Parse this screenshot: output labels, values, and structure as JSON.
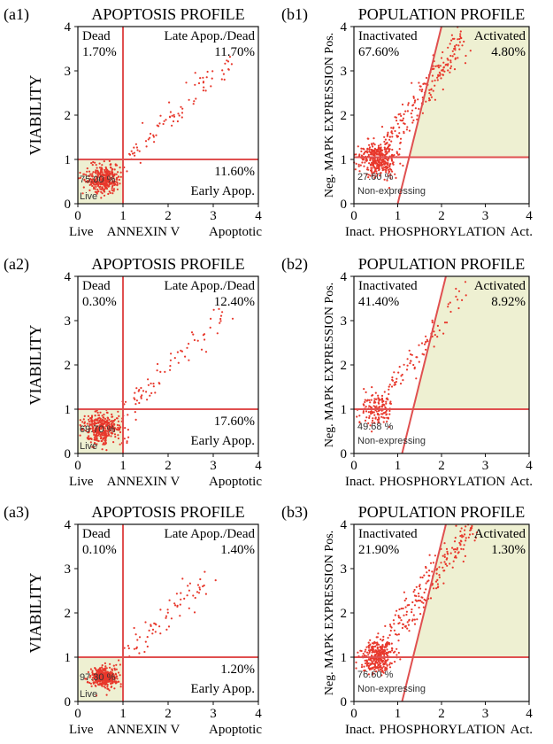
{
  "chart_data": [
    {
      "panel_label": "(a1)",
      "type": "scatter",
      "title": "APOPTOSIS PROFILE",
      "ylabel": "VIABILITY",
      "xlabel_left": "Live",
      "xlabel_mid": "ANNEXIN V",
      "xlabel_right": "Apoptotic",
      "xlim": [
        0,
        4
      ],
      "ylim": [
        0,
        4
      ],
      "x_ticks": [
        "0",
        "1",
        "2",
        "3",
        "4"
      ],
      "y_ticks": [
        "0",
        "1",
        "2",
        "3",
        "4"
      ],
      "gate": {
        "kind": "cross",
        "x": 1.0,
        "y": 1.0
      },
      "quadrants": {
        "top_left": {
          "name": "Dead",
          "value": "1.70%"
        },
        "top_right": {
          "name": "Late Apop./Dead",
          "value": "11.70%"
        },
        "bottom_left": {
          "name": "Live",
          "value": "75.00 %"
        },
        "bottom_right": {
          "name": "Early Apop.",
          "value": "11.60%"
        }
      },
      "highlight": "bottom_left",
      "colors": {
        "points": "#e8382c",
        "gate": "#e05050",
        "fill": "#eef0d2"
      },
      "cloud": {
        "n": 420,
        "spread": 0.55,
        "tail": 2.6
      }
    },
    {
      "panel_label": "(b1)",
      "type": "scatter",
      "title": "POPULATION PROFILE",
      "ylabel": "Neg. MAPK EXPRESSION Pos.",
      "xlabel_left": "Inact.",
      "xlabel_mid": "PHOSPHORYLATION",
      "xlabel_right": "Act.",
      "xlim": [
        0,
        4
      ],
      "ylim": [
        0,
        4
      ],
      "x_ticks": [
        "0",
        "1",
        "2",
        "3",
        "4"
      ],
      "y_ticks": [
        "0",
        "1",
        "2",
        "3",
        "4"
      ],
      "gate": {
        "kind": "angled",
        "y": 1.05,
        "line": [
          [
            1.0,
            0.0
          ],
          [
            2.0,
            4.0
          ]
        ]
      },
      "quadrants": {
        "top_left": {
          "name": "Inactivated",
          "value": "67.60%"
        },
        "top_right": {
          "name": "Activated",
          "value": "4.80%"
        },
        "bottom_left": {
          "name": "Non-expressing",
          "value": "27.60 %"
        }
      },
      "highlight": "top_right",
      "colors": {
        "points": "#e8382c",
        "gate": "#e05050",
        "fill": "#eef0d2"
      },
      "cloud": {
        "n": 560,
        "spread": 0.55,
        "tail": 2.8
      }
    },
    {
      "panel_label": "(a2)",
      "type": "scatter",
      "title": "APOPTOSIS PROFILE",
      "ylabel": "VIABILITY",
      "xlabel_left": "Live",
      "xlabel_mid": "ANNEXIN V",
      "xlabel_right": "Apoptotic",
      "xlim": [
        0,
        4
      ],
      "ylim": [
        0,
        4
      ],
      "x_ticks": [
        "0",
        "1",
        "2",
        "3",
        "4"
      ],
      "y_ticks": [
        "0",
        "1",
        "2",
        "3",
        "4"
      ],
      "gate": {
        "kind": "cross",
        "x": 1.0,
        "y": 1.0
      },
      "quadrants": {
        "top_left": {
          "name": "Dead",
          "value": "0.30%"
        },
        "top_right": {
          "name": "Late Apop./Dead",
          "value": "12.40%"
        },
        "bottom_left": {
          "name": "Live",
          "value": "69.70 %"
        },
        "bottom_right": {
          "name": "Early Apop.",
          "value": "17.60%"
        }
      },
      "highlight": "bottom_left",
      "colors": {
        "points": "#e8382c",
        "gate": "#e05050",
        "fill": "#eef0d2"
      },
      "cloud": {
        "n": 420,
        "spread": 0.6,
        "tail": 2.5
      }
    },
    {
      "panel_label": "(b2)",
      "type": "scatter",
      "title": "POPULATION PROFILE",
      "ylabel": "Neg. MAPK EXPRESSION Pos.",
      "xlabel_left": "Inact.",
      "xlabel_mid": "PHOSPHORYLATION",
      "xlabel_right": "Act.",
      "xlim": [
        0,
        4
      ],
      "ylim": [
        0,
        4
      ],
      "x_ticks": [
        "0",
        "1",
        "2",
        "3",
        "4"
      ],
      "y_ticks": [
        "0",
        "1",
        "2",
        "3",
        "4"
      ],
      "gate": {
        "kind": "angled",
        "y": 1.0,
        "line": [
          [
            1.1,
            0.0
          ],
          [
            2.1,
            4.0
          ]
        ]
      },
      "quadrants": {
        "top_left": {
          "name": "Inactivated",
          "value": "41.40%"
        },
        "top_right": {
          "name": "Activated",
          "value": "8.92%"
        },
        "bottom_left": {
          "name": "Non-expressing",
          "value": "49.68 %"
        }
      },
      "highlight": "top_right",
      "colors": {
        "points": "#e8382c",
        "gate": "#e05050",
        "fill": "#eef0d2"
      },
      "cloud": {
        "n": 220,
        "spread": 0.55,
        "tail": 2.6
      }
    },
    {
      "panel_label": "(a3)",
      "type": "scatter",
      "title": "APOPTOSIS PROFILE",
      "ylabel": "VIABILITY",
      "xlabel_left": "Live",
      "xlabel_mid": "ANNEXIN V",
      "xlabel_right": "Apoptotic",
      "xlim": [
        0,
        4
      ],
      "ylim": [
        0,
        4
      ],
      "x_ticks": [
        "0",
        "1",
        "2",
        "3",
        "4"
      ],
      "y_ticks": [
        "0",
        "1",
        "2",
        "3",
        "4"
      ],
      "gate": {
        "kind": "cross",
        "x": 1.0,
        "y": 1.0
      },
      "quadrants": {
        "top_left": {
          "name": "Dead",
          "value": "0.10%"
        },
        "top_right": {
          "name": "Late Apop./Dead",
          "value": "1.40%"
        },
        "bottom_left": {
          "name": "Live",
          "value": "97.30 %"
        },
        "bottom_right": {
          "name": "Early Apop.",
          "value": "1.20%"
        }
      },
      "highlight": "bottom_left",
      "colors": {
        "points": "#e8382c",
        "gate": "#e05050",
        "fill": "#eef0d2"
      },
      "cloud": {
        "n": 420,
        "spread": 0.4,
        "tail": 2.2
      }
    },
    {
      "panel_label": "(b3)",
      "type": "scatter",
      "title": "POPULATION PROFILE",
      "ylabel": "Neg. MAPK EXPRESSION Pos.",
      "xlabel_left": "Inact.",
      "xlabel_mid": "PHOSPHORYLATION",
      "xlabel_right": "Act.",
      "xlim": [
        0,
        4
      ],
      "ylim": [
        0,
        4
      ],
      "x_ticks": [
        "0",
        "1",
        "2",
        "3",
        "4"
      ],
      "y_ticks": [
        "0",
        "1",
        "2",
        "3",
        "4"
      ],
      "gate": {
        "kind": "angled",
        "y": 1.0,
        "line": [
          [
            1.1,
            0.0
          ],
          [
            2.1,
            4.0
          ]
        ]
      },
      "quadrants": {
        "top_left": {
          "name": "Inactivated",
          "value": "21.90%"
        },
        "top_right": {
          "name": "Activated",
          "value": "1.30%"
        },
        "bottom_left": {
          "name": "Non-expressing",
          "value": "76.60 %"
        }
      },
      "highlight": "top_right",
      "colors": {
        "points": "#e8382c",
        "gate": "#e05050",
        "fill": "#eef0d2"
      },
      "cloud": {
        "n": 520,
        "spread": 0.5,
        "tail": 3.0
      }
    }
  ]
}
